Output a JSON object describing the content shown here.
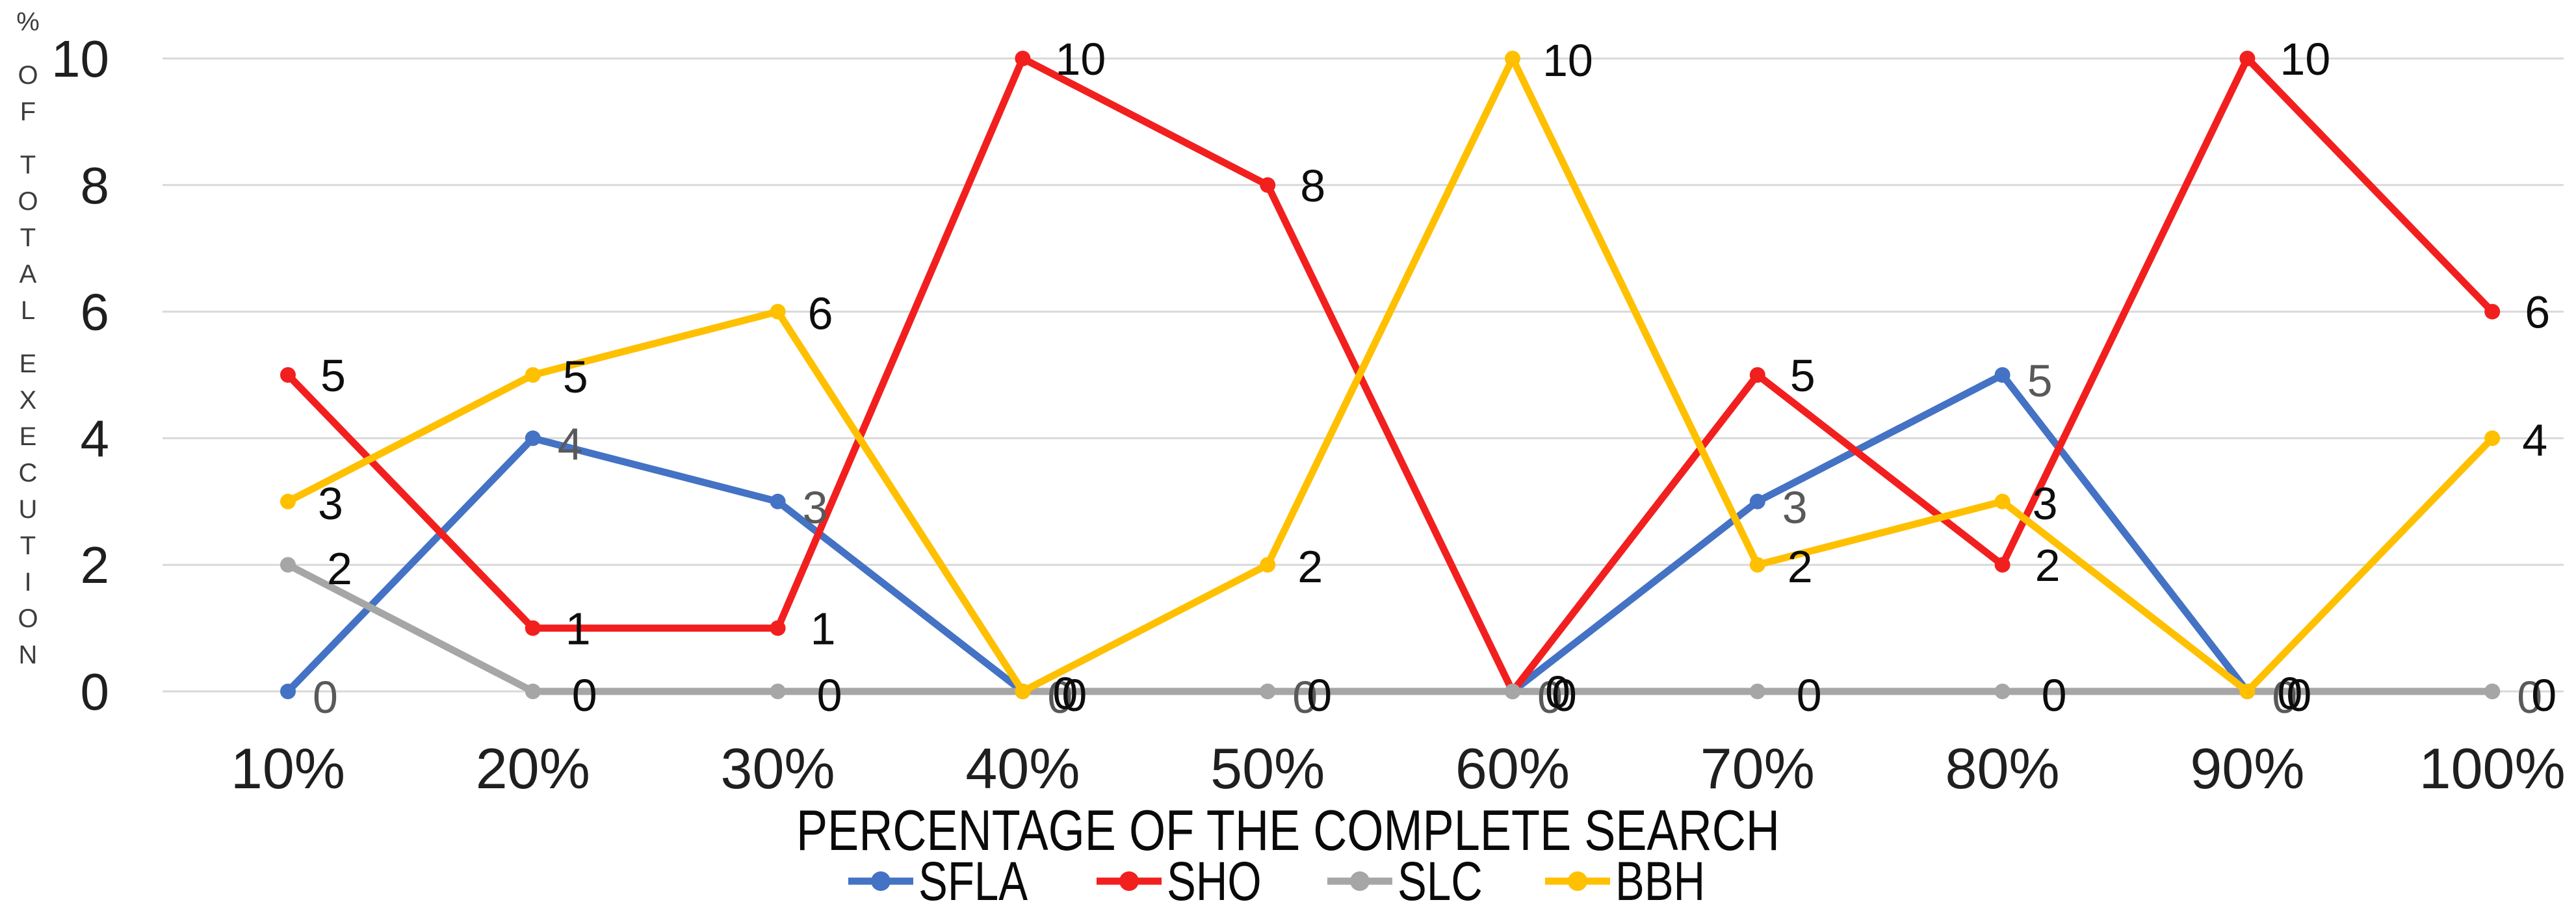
{
  "chart_data": {
    "type": "line",
    "title": "",
    "x_axis_title": "PERCENTAGE OF THE COMPLETE SEARCH",
    "y_axis_title": "% OF TOTAL EXECUTION",
    "categories": [
      "10%",
      "20%",
      "30%",
      "40%",
      "50%",
      "60%",
      "70%",
      "80%",
      "90%",
      "100%"
    ],
    "y_ticks": [
      0,
      2,
      4,
      6,
      8,
      10
    ],
    "ylim": [
      0,
      10
    ],
    "grid": true,
    "legend_position": "bottom",
    "gridline_color": "#D9D9D9",
    "tick_label_color": "#1f1f1f",
    "data_labels_visible": true,
    "series": [
      {
        "name": "SFLA",
        "color": "#4472C4",
        "label_color": "#595959",
        "values": [
          0,
          4,
          3,
          0,
          0,
          0,
          3,
          5,
          0,
          0
        ]
      },
      {
        "name": "SHO",
        "color": "#F21F1F",
        "label_color": "#0d0d0d",
        "values": [
          5,
          1,
          1,
          10,
          8,
          0,
          5,
          2,
          10,
          6
        ]
      },
      {
        "name": "SLC",
        "color": "#A6A6A6",
        "label_color": "#0d0d0d",
        "values": [
          2,
          0,
          0,
          0,
          0,
          0,
          0,
          0,
          0,
          0
        ]
      },
      {
        "name": "BBH",
        "color": "#FFC000",
        "label_color": "#0d0d0d",
        "values": [
          3,
          5,
          6,
          0,
          2,
          10,
          2,
          3,
          0,
          4
        ]
      }
    ]
  }
}
